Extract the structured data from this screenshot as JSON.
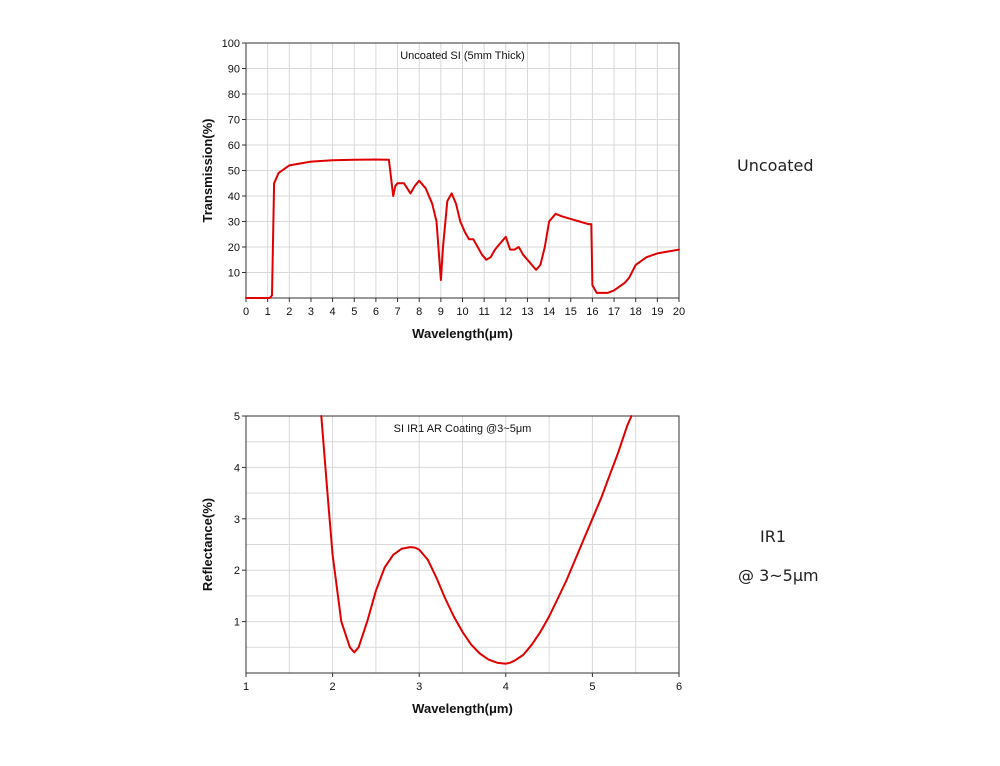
{
  "chart_data": [
    {
      "type": "line",
      "title": "Uncoated SI (5mm Thick)",
      "xlabel": "Wavelength(μm)",
      "ylabel": "Transmission(%)",
      "xlim": [
        0,
        20
      ],
      "ylim": [
        0,
        100
      ],
      "xticks": [
        "0",
        "1",
        "2",
        "3",
        "4",
        "5",
        "6",
        "7",
        "8",
        "9",
        "10",
        "11",
        "12",
        "13",
        "14",
        "15",
        "16",
        "17",
        "18",
        "19",
        "20"
      ],
      "yticks": [
        "10",
        "20",
        "30",
        "40",
        "50",
        "60",
        "70",
        "80",
        "90",
        "100"
      ],
      "grid": true,
      "series": [
        {
          "color": "#e00000",
          "x": [
            0,
            1.0,
            1.1,
            1.2,
            1.3,
            1.5,
            2,
            3,
            4,
            5,
            6,
            6.6,
            6.8,
            6.9,
            7.0,
            7.3,
            7.6,
            7.8,
            8.0,
            8.3,
            8.6,
            8.8,
            9.0,
            9.1,
            9.3,
            9.5,
            9.7,
            9.9,
            10.1,
            10.3,
            10.5,
            10.7,
            10.9,
            11.1,
            11.3,
            11.5,
            11.7,
            12.0,
            12.2,
            12.4,
            12.6,
            12.8,
            13.0,
            13.2,
            13.4,
            13.6,
            13.8,
            14.0,
            14.3,
            14.6,
            15.0,
            15.4,
            15.8,
            15.95,
            16.0,
            16.2,
            16.7,
            17.0,
            17.5,
            17.7,
            18.0,
            18.5,
            19.0,
            20.0
          ],
          "y": [
            0,
            0,
            0,
            1,
            45,
            49,
            52,
            53.5,
            54,
            54.2,
            54.3,
            54.2,
            40,
            44,
            45,
            45,
            41,
            44,
            46,
            43,
            37,
            30,
            7,
            20,
            38,
            41,
            37,
            30,
            26,
            23,
            23,
            20,
            17,
            15,
            16,
            19,
            21,
            24,
            19,
            19,
            20,
            17,
            15,
            13,
            11,
            13,
            20,
            30,
            33,
            32,
            31,
            30,
            29,
            29,
            5,
            2,
            2,
            3,
            6,
            8,
            13,
            16,
            17.5,
            19
          ]
        }
      ]
    },
    {
      "type": "line",
      "title": "SI IR1 AR Coating @3~5μm",
      "xlabel": "Wavelength(μm)",
      "ylabel": "Reflectance(%)",
      "xlim": [
        1,
        6
      ],
      "ylim": [
        0,
        5
      ],
      "xticks": [
        "1",
        "2",
        "3",
        "4",
        "5",
        "6"
      ],
      "yticks": [
        "1",
        "2",
        "3",
        "4",
        "5"
      ],
      "grid": true,
      "series": [
        {
          "color": "#e00000",
          "x": [
            1.87,
            1.95,
            2.0,
            2.1,
            2.2,
            2.25,
            2.3,
            2.4,
            2.5,
            2.6,
            2.7,
            2.8,
            2.9,
            2.95,
            3.0,
            3.1,
            3.2,
            3.3,
            3.4,
            3.5,
            3.6,
            3.7,
            3.8,
            3.9,
            4.0,
            4.05,
            4.1,
            4.2,
            4.3,
            4.4,
            4.5,
            4.6,
            4.7,
            4.8,
            4.9,
            5.0,
            5.1,
            5.2,
            5.3,
            5.4,
            5.45
          ],
          "y": [
            5.0,
            3.3,
            2.3,
            1.0,
            0.5,
            0.4,
            0.5,
            1.0,
            1.6,
            2.05,
            2.3,
            2.42,
            2.45,
            2.44,
            2.4,
            2.2,
            1.85,
            1.45,
            1.1,
            0.8,
            0.55,
            0.38,
            0.26,
            0.2,
            0.18,
            0.2,
            0.24,
            0.35,
            0.55,
            0.8,
            1.1,
            1.45,
            1.8,
            2.2,
            2.6,
            3.0,
            3.4,
            3.85,
            4.3,
            4.8,
            5.0
          ]
        }
      ]
    }
  ],
  "side_labels": {
    "chart1": "Uncoated",
    "chart2_line1": "IR1",
    "chart2_line2": "@ 3~5μm"
  }
}
